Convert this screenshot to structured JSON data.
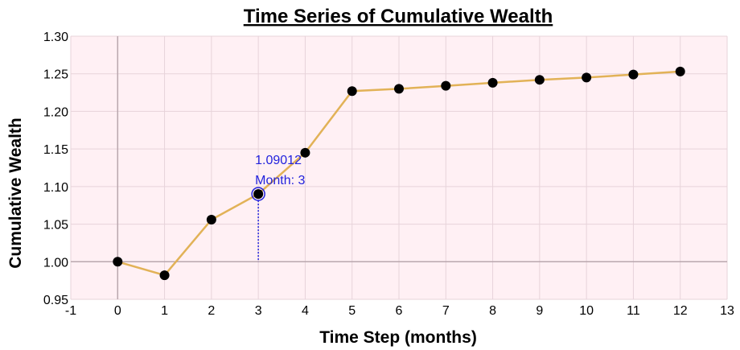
{
  "chart_data": {
    "type": "line",
    "title": "Time Series of Cumulative Wealth",
    "xlabel": "Time Step (months)",
    "ylabel": "Cumulative Wealth",
    "xlim": [
      -1,
      13
    ],
    "ylim": [
      0.95,
      1.3
    ],
    "xticks": [
      -1,
      0,
      1,
      2,
      3,
      4,
      5,
      6,
      7,
      8,
      9,
      10,
      11,
      12,
      13
    ],
    "yticks": [
      0.95,
      1.0,
      1.05,
      1.1,
      1.15,
      1.2,
      1.25,
      1.3
    ],
    "x": [
      0,
      1,
      2,
      3,
      4,
      5,
      6,
      7,
      8,
      9,
      10,
      11,
      12
    ],
    "y": [
      1.0,
      0.982,
      1.056,
      1.09012,
      1.145,
      1.227,
      1.23,
      1.234,
      1.238,
      1.242,
      1.245,
      1.249,
      1.253
    ],
    "grid": true,
    "colors": {
      "line": "#e2b257",
      "point": "#000000",
      "plot_bg": "#fff0f4",
      "grid": "#e7d3da",
      "tooltip": "#2222dd"
    },
    "tooltip": {
      "index": 3,
      "value_label": "1.09012",
      "x_label": "Month: 3"
    }
  }
}
